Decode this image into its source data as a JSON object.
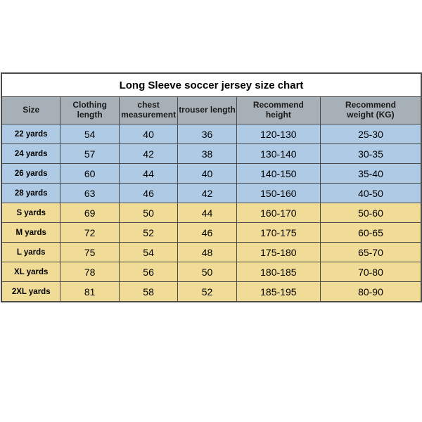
{
  "title": "Long Sleeve soccer jersey size chart",
  "columns": [
    "Size",
    "Clothing length",
    "chest measurement",
    "trouser length",
    "Recommend height",
    "Recommend weight (KG)"
  ],
  "col_widths_pct": [
    14,
    14,
    14,
    14,
    20,
    24
  ],
  "header_bg": "#a8b0b7",
  "header_text": "#1a1a1a",
  "border_color": "#4a4a4a",
  "groups": [
    {
      "bg": "#aecae5",
      "rows": [
        [
          "22 yards",
          "54",
          "40",
          "36",
          "120-130",
          "25-30"
        ],
        [
          "24 yards",
          "57",
          "42",
          "38",
          "130-140",
          "30-35"
        ],
        [
          "26 yards",
          "60",
          "44",
          "40",
          "140-150",
          "35-40"
        ],
        [
          "28 yards",
          "63",
          "46",
          "42",
          "150-160",
          "40-50"
        ]
      ]
    },
    {
      "bg": "#f1dc97",
      "rows": [
        [
          "S yards",
          "69",
          "50",
          "44",
          "160-170",
          "50-60"
        ],
        [
          "M yards",
          "72",
          "52",
          "46",
          "170-175",
          "60-65"
        ],
        [
          "L yards",
          "75",
          "54",
          "48",
          "175-180",
          "65-70"
        ],
        [
          "XL yards",
          "78",
          "56",
          "50",
          "180-185",
          "70-80"
        ],
        [
          "2XL yards",
          "81",
          "58",
          "52",
          "185-195",
          "80-90"
        ]
      ]
    }
  ]
}
